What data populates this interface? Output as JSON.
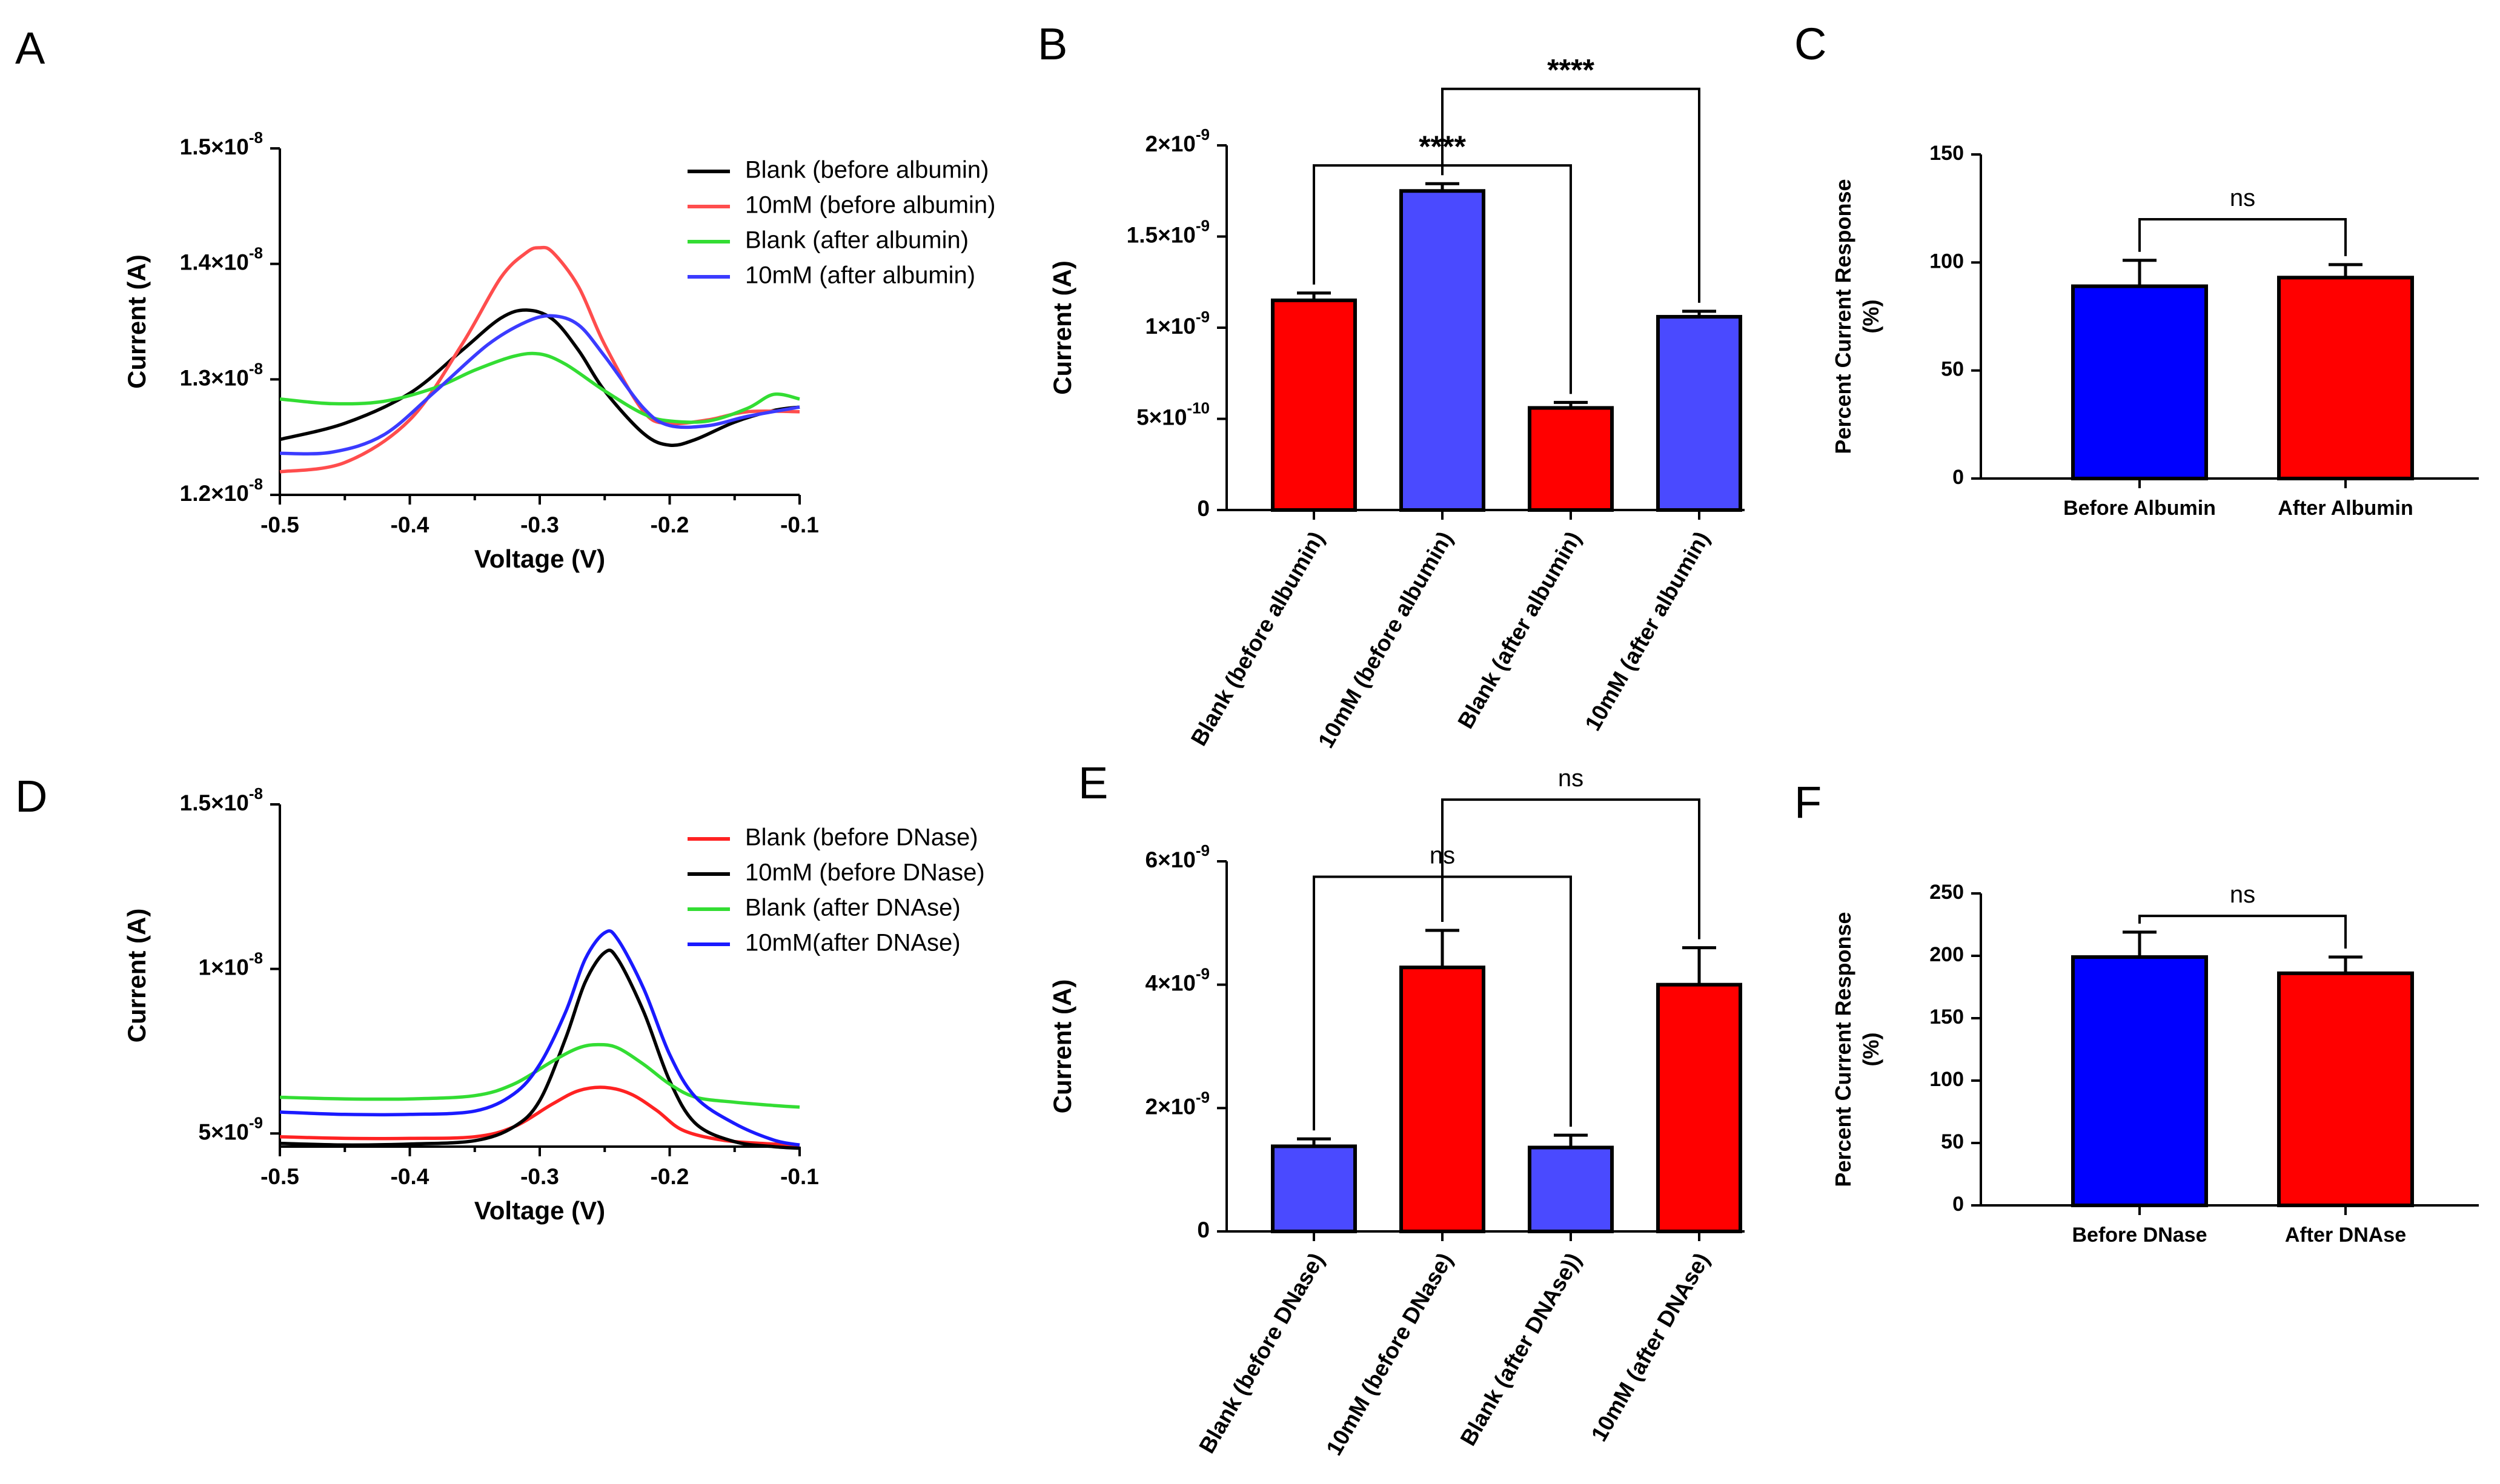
{
  "chart_data": [
    {
      "panel": "A",
      "type": "line",
      "xlabel": "Voltage (V)",
      "ylabel": "Current (A)",
      "xlim": [
        -0.5,
        -0.1
      ],
      "ylim": [
        1.2e-08,
        1.5e-08
      ],
      "xticks": [
        -0.5,
        -0.4,
        -0.3,
        -0.2,
        -0.1
      ],
      "xtick_labels": [
        "-0.5",
        "-0.4",
        "-0.3",
        "-0.2",
        "-0.1"
      ],
      "yticks": [
        1.2e-08,
        1.3e-08,
        1.4e-08,
        1.5e-08
      ],
      "ytick_labels": [
        {
          "mantissa": "1.2×10",
          "exp": "-8"
        },
        {
          "mantissa": "1.3×10",
          "exp": "-8"
        },
        {
          "mantissa": "1.4×10",
          "exp": "-8"
        },
        {
          "mantissa": "1.5×10",
          "exp": "-8"
        }
      ],
      "series": [
        {
          "name": "Blank (before albumin)",
          "color": "#000000",
          "x": [
            -0.5,
            -0.45,
            -0.4,
            -0.36,
            -0.33,
            -0.31,
            -0.29,
            -0.27,
            -0.25,
            -0.22,
            -0.2,
            -0.18,
            -0.15,
            -0.12,
            -0.1
          ],
          "y": [
            1.248e-08,
            1.262e-08,
            1.288e-08,
            1.325e-08,
            1.353e-08,
            1.36e-08,
            1.352e-08,
            1.325e-08,
            1.29e-08,
            1.253e-08,
            1.243e-08,
            1.248e-08,
            1.263e-08,
            1.273e-08,
            1.276e-08
          ]
        },
        {
          "name": "10mM (before albumin)",
          "color": "#ff4d4d",
          "x": [
            -0.5,
            -0.45,
            -0.4,
            -0.36,
            -0.33,
            -0.31,
            -0.3,
            -0.29,
            -0.27,
            -0.25,
            -0.22,
            -0.2,
            -0.17,
            -0.14,
            -0.1
          ],
          "y": [
            1.22e-08,
            1.228e-08,
            1.265e-08,
            1.33e-08,
            1.388e-08,
            1.41e-08,
            1.414e-08,
            1.41e-08,
            1.38e-08,
            1.33e-08,
            1.272e-08,
            1.262e-08,
            1.265e-08,
            1.272e-08,
            1.272e-08
          ]
        },
        {
          "name": "Blank (after albumin)",
          "color": "#33dd33",
          "x": [
            -0.5,
            -0.46,
            -0.42,
            -0.38,
            -0.35,
            -0.32,
            -0.3,
            -0.28,
            -0.25,
            -0.22,
            -0.2,
            -0.17,
            -0.14,
            -0.12,
            -0.1
          ],
          "y": [
            1.283e-08,
            1.279e-08,
            1.281e-08,
            1.293e-08,
            1.308e-08,
            1.32e-08,
            1.322e-08,
            1.313e-08,
            1.29e-08,
            1.27e-08,
            1.264e-08,
            1.264e-08,
            1.275e-08,
            1.287e-08,
            1.283e-08
          ]
        },
        {
          "name": "10mM (after albumin)",
          "color": "#3b3bff",
          "x": [
            -0.5,
            -0.46,
            -0.42,
            -0.38,
            -0.34,
            -0.31,
            -0.29,
            -0.27,
            -0.25,
            -0.22,
            -0.2,
            -0.17,
            -0.14,
            -0.1
          ],
          "y": [
            1.236e-08,
            1.237e-08,
            1.252e-08,
            1.29e-08,
            1.33e-08,
            1.35e-08,
            1.355e-08,
            1.347e-08,
            1.32e-08,
            1.275e-08,
            1.26e-08,
            1.26e-08,
            1.268e-08,
            1.276e-08
          ]
        }
      ]
    },
    {
      "panel": "B",
      "type": "bar",
      "ylabel": "Current (A)",
      "ylim": [
        0,
        2e-09
      ],
      "yticks": [
        0,
        5e-10,
        1e-09,
        1.5e-09,
        2e-09
      ],
      "ytick_labels": [
        {
          "mantissa": "0",
          "exp": ""
        },
        {
          "mantissa": "5×10",
          "exp": "-10"
        },
        {
          "mantissa": "1×10",
          "exp": "-9"
        },
        {
          "mantissa": "1.5×10",
          "exp": "-9"
        },
        {
          "mantissa": "2×10",
          "exp": "-9"
        }
      ],
      "categories": [
        "Blank (before albumin)",
        "10mM (before albumin)",
        "Blank (after albumin)",
        "10mM (after albumin)"
      ],
      "values": [
        1.15e-09,
        1.75e-09,
        5.6e-10,
        1.06e-09
      ],
      "errors": [
        4e-11,
        4e-11,
        3e-11,
        3e-11
      ],
      "colors": [
        "#ff0000",
        "#4a4aff",
        "#ff0000",
        "#4a4aff"
      ],
      "significance": [
        {
          "from": 0,
          "to": 2,
          "label": "****",
          "level": 1.89e-09
        },
        {
          "from": 1,
          "to": 3,
          "label": "****",
          "level": 2.31e-09
        }
      ]
    },
    {
      "panel": "C",
      "type": "bar",
      "ylabel": "Percent Current Response",
      "ylabel2": "(%)",
      "ylim": [
        0,
        150
      ],
      "yticks": [
        0,
        50,
        100,
        150
      ],
      "ytick_labels": [
        "0",
        "50",
        "100",
        "150"
      ],
      "categories": [
        "Before Albumin",
        "After Albumin"
      ],
      "values": [
        89,
        93
      ],
      "errors": [
        12,
        6
      ],
      "colors": [
        "#0000ff",
        "#ff0000"
      ],
      "significance": [
        {
          "from": 0,
          "to": 1,
          "label": "ns",
          "level": 120
        }
      ]
    },
    {
      "panel": "D",
      "type": "line",
      "xlabel": "Voltage (V)",
      "ylabel": "Current (A)",
      "xlim": [
        -0.5,
        -0.1
      ],
      "ylim": [
        4.6e-09,
        1.5e-08
      ],
      "xticks": [
        -0.5,
        -0.4,
        -0.3,
        -0.2,
        -0.1
      ],
      "xtick_labels": [
        "-0.5",
        "-0.4",
        "-0.3",
        "-0.2",
        "-0.1"
      ],
      "yticks": [
        5e-09,
        1e-08,
        1.5e-08
      ],
      "ytick_labels": [
        {
          "mantissa": "5×10",
          "exp": "-9"
        },
        {
          "mantissa": "1×10",
          "exp": "-8"
        },
        {
          "mantissa": "1.5×10",
          "exp": "-8"
        }
      ],
      "series": [
        {
          "name": "Blank (before DNase)",
          "color": "#ff2222",
          "x": [
            -0.5,
            -0.45,
            -0.4,
            -0.35,
            -0.32,
            -0.29,
            -0.27,
            -0.25,
            -0.23,
            -0.21,
            -0.19,
            -0.16,
            -0.13,
            -0.1
          ],
          "y": [
            4.9e-09,
            4.85e-09,
            4.85e-09,
            4.9e-09,
            5.2e-09,
            5.9e-09,
            6.3e-09,
            6.4e-09,
            6.2e-09,
            5.7e-09,
            5.1e-09,
            4.8e-09,
            4.7e-09,
            4.65e-09
          ]
        },
        {
          "name": "10mM (before DNase)",
          "color": "#000000",
          "x": [
            -0.5,
            -0.45,
            -0.4,
            -0.35,
            -0.32,
            -0.3,
            -0.28,
            -0.265,
            -0.25,
            -0.24,
            -0.22,
            -0.2,
            -0.18,
            -0.15,
            -0.12,
            -0.1
          ],
          "y": [
            4.7e-09,
            4.65e-09,
            4.68e-09,
            4.78e-09,
            5.2e-09,
            6e-09,
            7.9e-09,
            9.6e-09,
            1.05e-08,
            1.03e-08,
            8.7e-09,
            6.6e-09,
            5.3e-09,
            4.75e-09,
            4.6e-09,
            4.55e-09
          ]
        },
        {
          "name": "Blank (after DNAse)",
          "color": "#33dd33",
          "x": [
            -0.5,
            -0.45,
            -0.4,
            -0.35,
            -0.32,
            -0.29,
            -0.27,
            -0.255,
            -0.24,
            -0.22,
            -0.2,
            -0.18,
            -0.15,
            -0.12,
            -0.1
          ],
          "y": [
            6.1e-09,
            6.05e-09,
            6.05e-09,
            6.15e-09,
            6.5e-09,
            7.2e-09,
            7.6e-09,
            7.7e-09,
            7.6e-09,
            7.1e-09,
            6.5e-09,
            6.1e-09,
            5.95e-09,
            5.85e-09,
            5.8e-09
          ]
        },
        {
          "name": "10mM(after  DNAse)",
          "color": "#1a1aff",
          "x": [
            -0.5,
            -0.45,
            -0.4,
            -0.35,
            -0.32,
            -0.3,
            -0.28,
            -0.265,
            -0.25,
            -0.24,
            -0.22,
            -0.2,
            -0.18,
            -0.15,
            -0.12,
            -0.1
          ],
          "y": [
            5.65e-09,
            5.58e-09,
            5.58e-09,
            5.68e-09,
            6.2e-09,
            7.1e-09,
            8.7e-09,
            1.03e-08,
            1.11e-08,
            1.09e-08,
            9.4e-09,
            7.4e-09,
            6.1e-09,
            5.3e-09,
            4.8e-09,
            4.65e-09
          ]
        }
      ]
    },
    {
      "panel": "E",
      "type": "bar",
      "ylabel": "Current (A)",
      "ylim": [
        0,
        6e-09
      ],
      "yticks": [
        0,
        2e-09,
        4e-09,
        6e-09
      ],
      "ytick_labels": [
        {
          "mantissa": "0",
          "exp": ""
        },
        {
          "mantissa": "2×10",
          "exp": "-9"
        },
        {
          "mantissa": "4×10",
          "exp": "-9"
        },
        {
          "mantissa": "6×10",
          "exp": "-9"
        }
      ],
      "categories": [
        "Blank (before DNase)",
        "10mM (before DNase)",
        "Blank (after DNAse))",
        "10mM (after DNAse)"
      ],
      "values": [
        1.38e-09,
        4.28e-09,
        1.36e-09,
        4e-09
      ],
      "errors": [
        1.2e-10,
        6e-10,
        2e-10,
        6e-10
      ],
      "colors": [
        "#4a4aff",
        "#ff0000",
        "#4a4aff",
        "#ff0000"
      ],
      "significance": [
        {
          "from": 0,
          "to": 2,
          "label": "ns",
          "level": 5.75e-09
        },
        {
          "from": 1,
          "to": 3,
          "label": "ns",
          "level": 7e-09
        }
      ]
    },
    {
      "panel": "F",
      "type": "bar",
      "ylabel": "Percent Current Response",
      "ylabel2": "(%)",
      "ylim": [
        0,
        250
      ],
      "yticks": [
        0,
        50,
        100,
        150,
        200,
        250
      ],
      "ytick_labels": [
        "0",
        "50",
        "100",
        "150",
        "200",
        "250"
      ],
      "categories": [
        "Before DNase",
        "After DNAse"
      ],
      "values": [
        199,
        186
      ],
      "errors": [
        20,
        13
      ],
      "colors": [
        "#0000ff",
        "#ff0000"
      ],
      "significance": [
        {
          "from": 0,
          "to": 1,
          "label": "ns",
          "level": 232
        }
      ]
    }
  ]
}
